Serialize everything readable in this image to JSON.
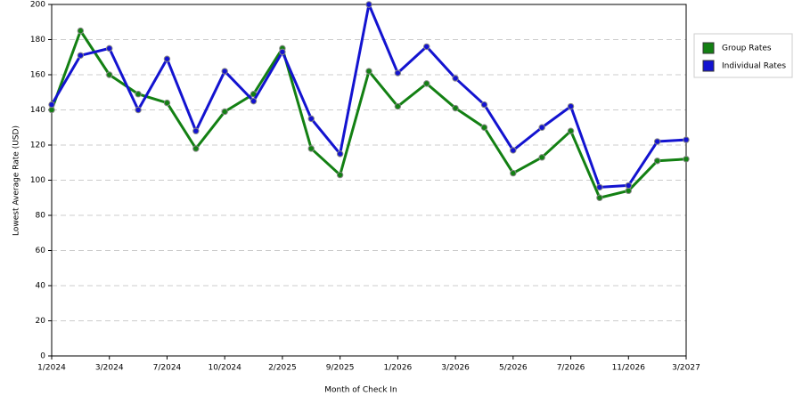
{
  "chart_data": {
    "type": "line",
    "x_label": "Month of Check In",
    "y_label": "Lowest Average Rate (USD)",
    "categories": [
      "1/2024",
      null,
      "3/2024",
      null,
      "7/2024",
      null,
      "10/2024",
      null,
      "2/2025",
      null,
      "9/2025",
      null,
      "1/2026",
      null,
      "3/2026",
      null,
      "5/2026",
      null,
      "7/2026",
      null,
      "11/2026",
      null,
      "3/2027"
    ],
    "series": [
      {
        "name": "Group Rates",
        "color": "#138013",
        "values": [
          140,
          185,
          160,
          149,
          144,
          118,
          139,
          149,
          175,
          118,
          103,
          162,
          142,
          155,
          141,
          130,
          104,
          113,
          128,
          90,
          94,
          111,
          112
        ]
      },
      {
        "name": "Individual Rates",
        "color": "#1313d0",
        "values": [
          143,
          171,
          175,
          140,
          169,
          128,
          162,
          145,
          173,
          135,
          115,
          200,
          161,
          176,
          158,
          143,
          117,
          130,
          142,
          96,
          97,
          122,
          123
        ]
      }
    ],
    "ylim": [
      0,
      200
    ],
    "yticks": [
      0,
      20,
      40,
      60,
      80,
      100,
      120,
      140,
      160,
      180,
      200
    ],
    "grid": true,
    "legend": "right"
  }
}
